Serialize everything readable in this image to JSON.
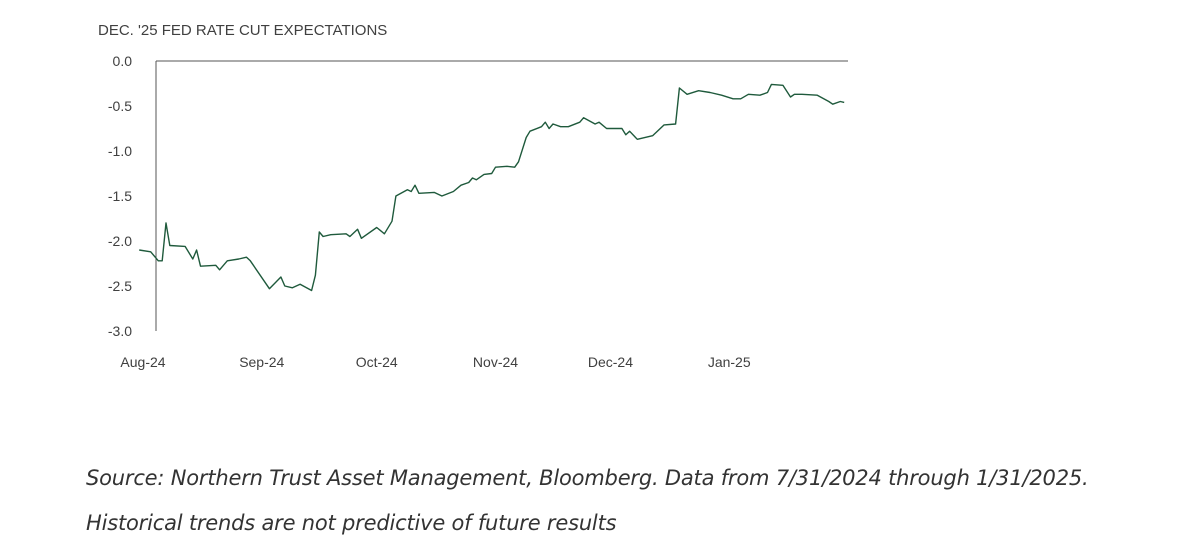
{
  "chart_data": {
    "type": "line",
    "title": "DEC. '25 FED RATE CUT EXPECTATIONS",
    "xlabel": "",
    "ylabel": "",
    "ylim": [
      -3.0,
      0.0
    ],
    "yticks": [
      "0.0",
      "-0.5",
      "-1.0",
      "-1.5",
      "-2.0",
      "-2.5",
      "-3.0"
    ],
    "xticks": [
      "Aug-24",
      "Sep-24",
      "Oct-24",
      "Nov-24",
      "Dec-24",
      "Jan-25"
    ],
    "xlim": [
      "2024-08-01",
      "2025-01-31"
    ],
    "grid": false,
    "legend": "none",
    "line_color": "#1f5a3c",
    "series": [
      {
        "values": [
          [
            "2024-07-31",
            -2.1
          ],
          [
            "2024-08-03",
            -2.12
          ],
          [
            "2024-08-05",
            -2.22
          ],
          [
            "2024-08-06",
            -2.22
          ],
          [
            "2024-08-07",
            -1.8
          ],
          [
            "2024-08-08",
            -2.05
          ],
          [
            "2024-08-12",
            -2.06
          ],
          [
            "2024-08-14",
            -2.2
          ],
          [
            "2024-08-15",
            -2.1
          ],
          [
            "2024-08-16",
            -2.28
          ],
          [
            "2024-08-20",
            -2.27
          ],
          [
            "2024-08-21",
            -2.32
          ],
          [
            "2024-08-23",
            -2.22
          ],
          [
            "2024-08-26",
            -2.2
          ],
          [
            "2024-08-28",
            -2.18
          ],
          [
            "2024-08-29",
            -2.22
          ],
          [
            "2024-09-03",
            -2.53
          ],
          [
            "2024-09-06",
            -2.4
          ],
          [
            "2024-09-07",
            -2.5
          ],
          [
            "2024-09-09",
            -2.52
          ],
          [
            "2024-09-11",
            -2.48
          ],
          [
            "2024-09-14",
            -2.55
          ],
          [
            "2024-09-15",
            -2.38
          ],
          [
            "2024-09-16",
            -1.9
          ],
          [
            "2024-09-17",
            -1.95
          ],
          [
            "2024-09-19",
            -1.93
          ],
          [
            "2024-09-23",
            -1.92
          ],
          [
            "2024-09-24",
            -1.95
          ],
          [
            "2024-09-26",
            -1.87
          ],
          [
            "2024-09-27",
            -1.97
          ],
          [
            "2024-10-01",
            -1.85
          ],
          [
            "2024-10-03",
            -1.92
          ],
          [
            "2024-10-05",
            -1.78
          ],
          [
            "2024-10-06",
            -1.5
          ],
          [
            "2024-10-09",
            -1.43
          ],
          [
            "2024-10-10",
            -1.45
          ],
          [
            "2024-10-11",
            -1.38
          ],
          [
            "2024-10-12",
            -1.47
          ],
          [
            "2024-10-16",
            -1.46
          ],
          [
            "2024-10-18",
            -1.5
          ],
          [
            "2024-10-21",
            -1.45
          ],
          [
            "2024-10-23",
            -1.38
          ],
          [
            "2024-10-25",
            -1.35
          ],
          [
            "2024-10-26",
            -1.3
          ],
          [
            "2024-10-27",
            -1.32
          ],
          [
            "2024-10-29",
            -1.26
          ],
          [
            "2024-10-31",
            -1.25
          ],
          [
            "2024-11-01",
            -1.18
          ],
          [
            "2024-11-04",
            -1.17
          ],
          [
            "2024-11-06",
            -1.18
          ],
          [
            "2024-11-07",
            -1.12
          ],
          [
            "2024-11-09",
            -0.85
          ],
          [
            "2024-11-10",
            -0.78
          ],
          [
            "2024-11-13",
            -0.73
          ],
          [
            "2024-11-14",
            -0.68
          ],
          [
            "2024-11-15",
            -0.75
          ],
          [
            "2024-11-16",
            -0.7
          ],
          [
            "2024-11-18",
            -0.73
          ],
          [
            "2024-11-20",
            -0.73
          ],
          [
            "2024-11-23",
            -0.68
          ],
          [
            "2024-11-24",
            -0.63
          ],
          [
            "2024-11-27",
            -0.7
          ],
          [
            "2024-11-28",
            -0.68
          ],
          [
            "2024-11-30",
            -0.75
          ],
          [
            "2024-12-04",
            -0.75
          ],
          [
            "2024-12-05",
            -0.82
          ],
          [
            "2024-12-06",
            -0.78
          ],
          [
            "2024-12-08",
            -0.87
          ],
          [
            "2024-12-12",
            -0.83
          ],
          [
            "2024-12-15",
            -0.71
          ],
          [
            "2024-12-18",
            -0.7
          ],
          [
            "2024-12-19",
            -0.3
          ],
          [
            "2024-12-21",
            -0.37
          ],
          [
            "2024-12-24",
            -0.33
          ],
          [
            "2024-12-27",
            -0.35
          ],
          [
            "2024-12-30",
            -0.38
          ],
          [
            "2025-01-02",
            -0.42
          ],
          [
            "2025-01-04",
            -0.42
          ],
          [
            "2025-01-06",
            -0.37
          ],
          [
            "2025-01-09",
            -0.38
          ],
          [
            "2025-01-11",
            -0.35
          ],
          [
            "2025-01-12",
            -0.26
          ],
          [
            "2025-01-15",
            -0.27
          ],
          [
            "2025-01-17",
            -0.4
          ],
          [
            "2025-01-18",
            -0.37
          ],
          [
            "2025-01-20",
            -0.37
          ],
          [
            "2025-01-24",
            -0.38
          ],
          [
            "2025-01-27",
            -0.45
          ],
          [
            "2025-01-28",
            -0.48
          ],
          [
            "2025-01-30",
            -0.45
          ],
          [
            "2025-01-31",
            -0.46
          ]
        ]
      }
    ]
  },
  "source": {
    "line1": "Source: Northern Trust Asset Management, Bloomberg. Data from 7/31/2024 through 1/31/2025.",
    "line2": "Historical trends are not predictive of future results"
  }
}
